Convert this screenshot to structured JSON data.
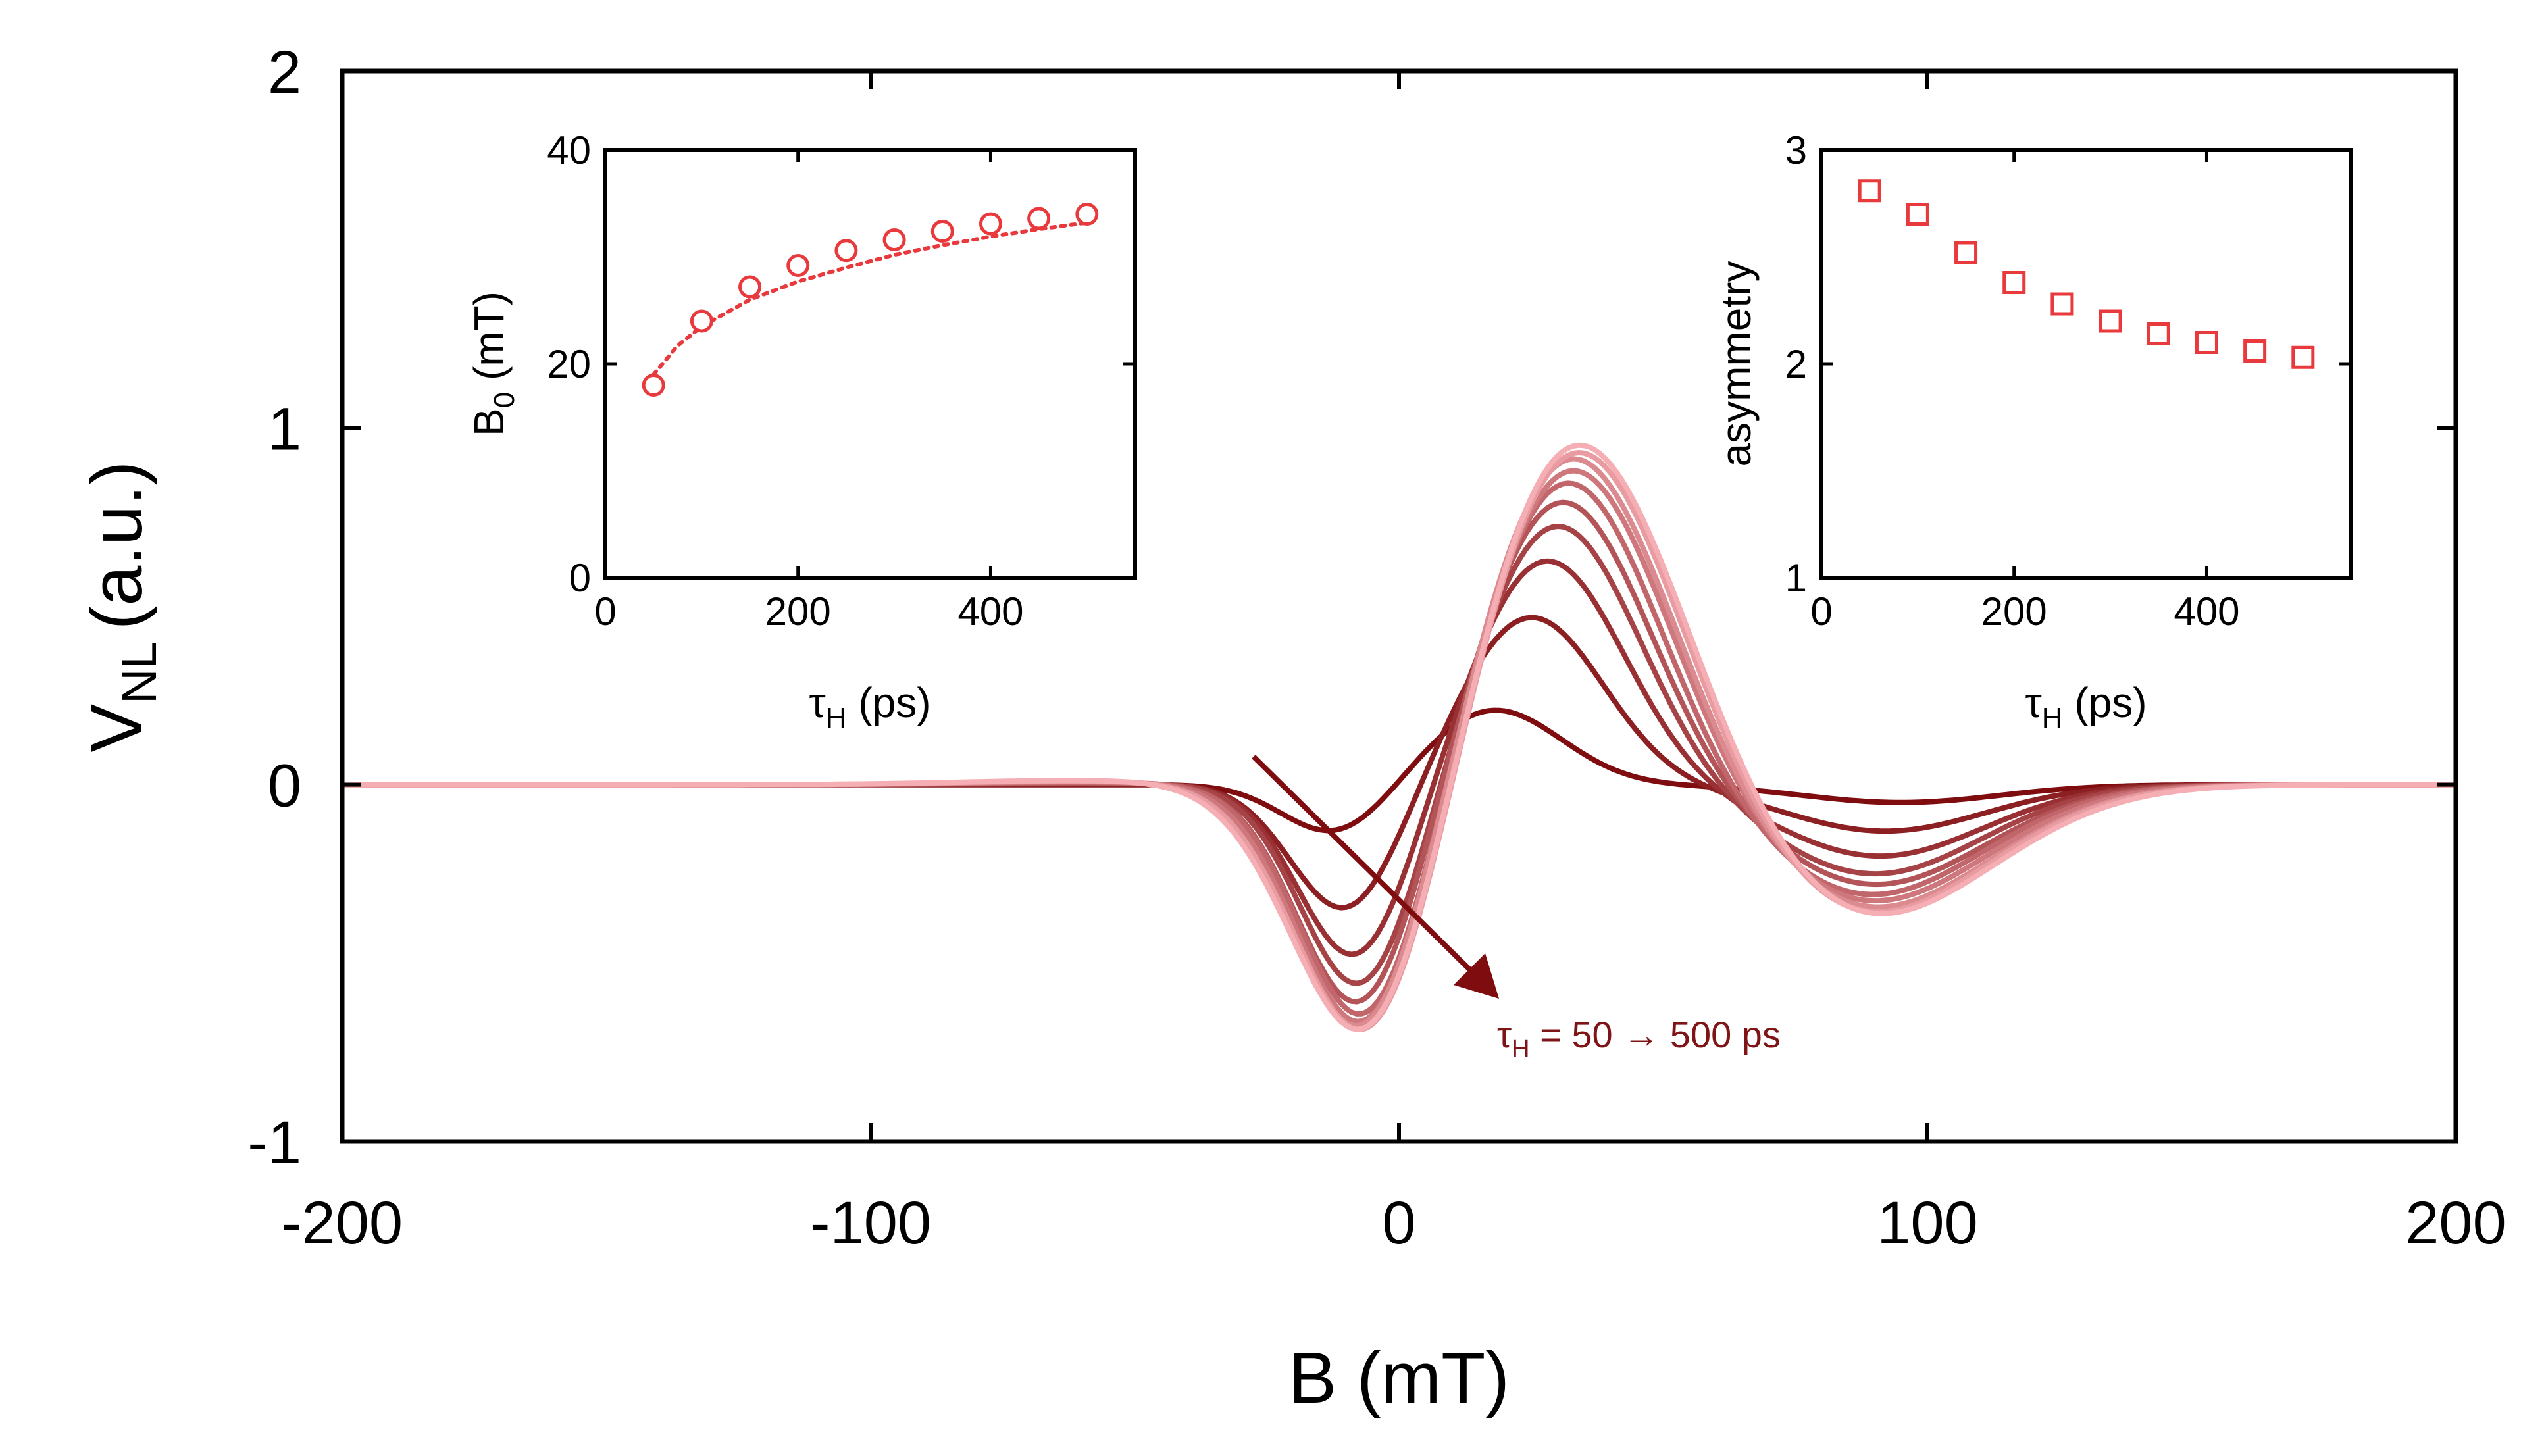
{
  "chart_data": [
    {
      "type": "line",
      "xlabel": "B (mT)",
      "ylabel_main": "V",
      "ylabel_sub": "NL",
      "ylabel_unit": "(a.u.)",
      "xlim": [
        -200,
        200
      ],
      "ylim": [
        -1,
        2
      ],
      "x_ticks": [
        -200,
        -100,
        0,
        100,
        200
      ],
      "x_tick_labels": [
        "-200",
        "-100",
        "0",
        "100",
        "200"
      ],
      "y_ticks": [
        -1,
        0,
        1,
        2
      ],
      "y_tick_labels": [
        "-1",
        "0",
        "1",
        "2"
      ],
      "annotation": {
        "tau": "τ",
        "sub": "H",
        "text": " = 50 → 500 ps"
      },
      "color_dark": "#7f0d10",
      "color_light": "#f5aeb3",
      "series": [
        {
          "name": "τH = 50 ps",
          "peak_pos_B": 18,
          "peak_pos_V": 0.21,
          "dip_neg_B": -12,
          "dip_neg_V": -0.14,
          "dip_right_B": 95,
          "dip_right_V": -0.05
        },
        {
          "name": "τH = 100 ps",
          "peak_pos_B": 25,
          "peak_pos_V": 0.47,
          "dip_neg_B": -10,
          "dip_neg_V": -0.36,
          "dip_right_B": 92,
          "dip_right_V": -0.13
        },
        {
          "name": "τH = 150 ps",
          "peak_pos_B": 28,
          "peak_pos_V": 0.63,
          "dip_neg_B": -8,
          "dip_neg_V": -0.5,
          "dip_right_B": 91,
          "dip_right_V": -0.2
        },
        {
          "name": "τH = 200 ps",
          "peak_pos_B": 30,
          "peak_pos_V": 0.73,
          "dip_neg_B": -7,
          "dip_neg_V": -0.59,
          "dip_right_B": 90,
          "dip_right_V": -0.25
        },
        {
          "name": "τH = 250 ps",
          "peak_pos_B": 31,
          "peak_pos_V": 0.8,
          "dip_neg_B": -7,
          "dip_neg_V": -0.65,
          "dip_right_B": 90,
          "dip_right_V": -0.28
        },
        {
          "name": "τH = 300 ps",
          "peak_pos_B": 32,
          "peak_pos_V": 0.86,
          "dip_neg_B": -6,
          "dip_neg_V": -0.7,
          "dip_right_B": 89,
          "dip_right_V": -0.31
        },
        {
          "name": "τH = 350 ps",
          "peak_pos_B": 33,
          "peak_pos_V": 0.9,
          "dip_neg_B": -6,
          "dip_neg_V": -0.73,
          "dip_right_B": 89,
          "dip_right_V": -0.33
        },
        {
          "name": "τH = 400 ps",
          "peak_pos_B": 33,
          "peak_pos_V": 0.94,
          "dip_neg_B": -6,
          "dip_neg_V": -0.76,
          "dip_right_B": 89,
          "dip_right_V": -0.35
        },
        {
          "name": "τH = 450 ps",
          "peak_pos_B": 34,
          "peak_pos_V": 0.97,
          "dip_neg_B": -5,
          "dip_neg_V": -0.79,
          "dip_right_B": 88,
          "dip_right_V": -0.37
        },
        {
          "name": "τH = 500 ps",
          "peak_pos_B": 34,
          "peak_pos_V": 1.0,
          "dip_neg_B": -5,
          "dip_neg_V": -0.81,
          "dip_right_B": 88,
          "dip_right_V": -0.38
        }
      ]
    },
    {
      "type": "scatter",
      "marker": "circle",
      "xlabel_sym": "τ",
      "xlabel_sub": "H",
      "xlabel_unit": " (ps)",
      "ylabel_sym": "B",
      "ylabel_sub": "0",
      "ylabel_unit": " (mT)",
      "xlim": [
        0,
        550
      ],
      "ylim": [
        0,
        40
      ],
      "x_ticks": [
        0,
        200,
        400
      ],
      "x_tick_labels": [
        "0",
        "200",
        "400"
      ],
      "y_ticks": [
        0,
        20,
        40
      ],
      "y_tick_labels": [
        "0",
        "20",
        "40"
      ],
      "color": "#e8393d",
      "x": [
        50,
        100,
        150,
        200,
        250,
        300,
        350,
        400,
        450,
        500
      ],
      "y": [
        18,
        24,
        27.2,
        29.2,
        30.6,
        31.6,
        32.4,
        33.1,
        33.6,
        34
      ],
      "fit": {
        "style": "dotted",
        "x": [
          50,
          75,
          100,
          150,
          200,
          250,
          300,
          350,
          400,
          450,
          500
        ],
        "y": [
          19,
          21.7,
          23.5,
          26,
          27.7,
          29,
          30.2,
          31.1,
          31.9,
          32.6,
          33.2
        ]
      }
    },
    {
      "type": "scatter",
      "marker": "square",
      "xlabel_sym": "τ",
      "xlabel_sub": "H",
      "xlabel_unit": " (ps)",
      "ylabel": "asymmetry",
      "xlim": [
        0,
        550
      ],
      "ylim": [
        1,
        3
      ],
      "x_ticks": [
        0,
        200,
        400
      ],
      "x_tick_labels": [
        "0",
        "200",
        "400"
      ],
      "y_ticks": [
        1,
        2,
        3
      ],
      "y_tick_labels": [
        "1",
        "2",
        "3"
      ],
      "color": "#e8393d",
      "x": [
        50,
        100,
        150,
        200,
        250,
        300,
        350,
        400,
        450,
        500
      ],
      "y": [
        2.81,
        2.7,
        2.52,
        2.38,
        2.28,
        2.2,
        2.14,
        2.1,
        2.06,
        2.03
      ]
    }
  ]
}
